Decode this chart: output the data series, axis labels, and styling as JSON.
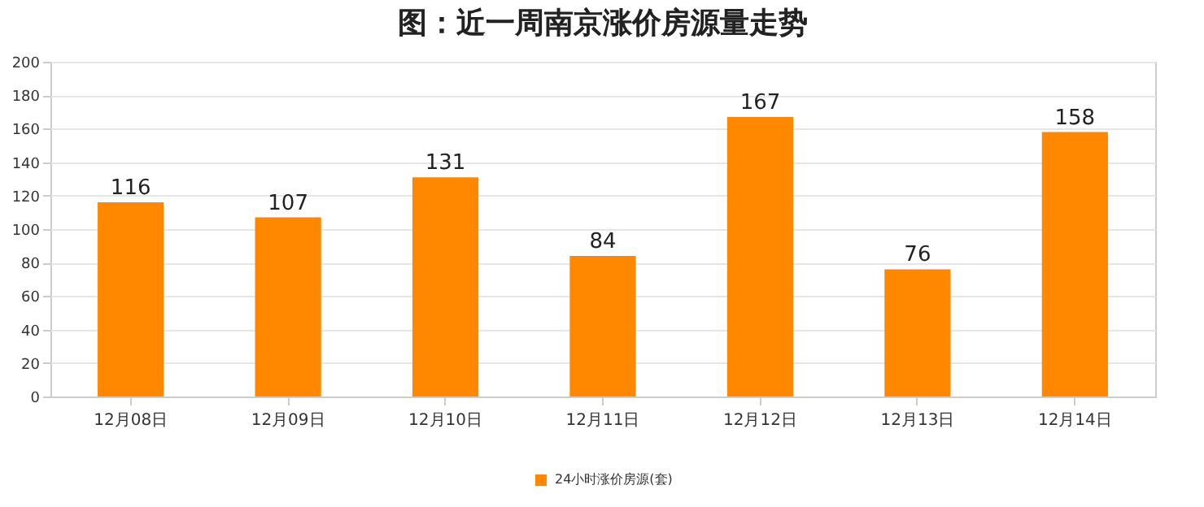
{
  "chart_data": {
    "type": "bar",
    "title": "图：近一周南京涨价房源量走势",
    "categories": [
      "12月08日",
      "12月09日",
      "12月10日",
      "12月11日",
      "12月12日",
      "12月13日",
      "12月14日"
    ],
    "series": [
      {
        "name": "24小时涨价房源(套)",
        "color": "#ff8800",
        "values": [
          116,
          107,
          131,
          84,
          167,
          76,
          158
        ]
      }
    ],
    "ylim": [
      0,
      200
    ],
    "yticks": [
      0,
      20,
      40,
      60,
      80,
      100,
      120,
      140,
      160,
      180,
      200
    ],
    "grid": "y",
    "legend": "bottom",
    "data_labels": true
  }
}
